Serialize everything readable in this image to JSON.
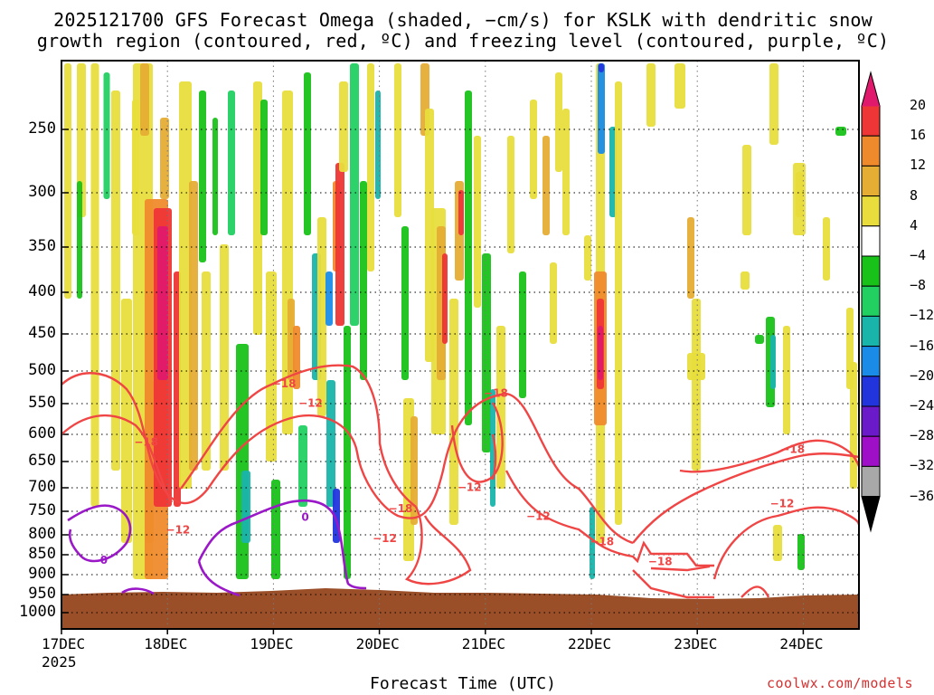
{
  "title_line1": "2025121700 GFS Forecast Omega (shaded, −cm/s) for KSLK with dendritic snow",
  "title_line2": "growth region (contoured, red, ºC) and freezing level (contoured, purple, ºC)",
  "watermark": "coolwx.com/models",
  "colors": {
    "pink": "#e0196d",
    "red": "#ee3636",
    "orange": "#ef8a2c",
    "amber": "#e6ad35",
    "yellow": "#e8dd3c",
    "white": "#ffffff",
    "green": "#19c219",
    "ltgreen": "#22d062",
    "teal": "#19b4aa",
    "blue": "#1a8ce8",
    "navy": "#2235dd",
    "purple": "#6a1ac8",
    "violet": "#a00fc8",
    "gray": "#a8a8a8",
    "black": "#000000",
    "ground": "#9a4f28",
    "contour_red": "#f04545",
    "contour_purple": "#9a18c8"
  },
  "chart_data": {
    "type": "heatmap",
    "title": "2025121700 GFS Forecast Omega (shaded, −cm/s) for KSLK",
    "xlabel": "Forecast Time (UTC)",
    "ylabel": "",
    "x_range_days": [
      0,
      7.5
    ],
    "y_range_hpa": [
      200,
      1050
    ],
    "x_ticks": [
      "17DEC",
      "18DEC",
      "19DEC",
      "20DEC",
      "21DEC",
      "22DEC",
      "23DEC",
      "24DEC"
    ],
    "x_year": "2025",
    "y_ticks": [
      "250",
      "300",
      "350",
      "400",
      "450",
      "500",
      "550",
      "600",
      "650",
      "700",
      "750",
      "800",
      "850",
      "900",
      "950",
      "1000"
    ],
    "y_tick_values": [
      250,
      300,
      350,
      400,
      450,
      500,
      550,
      600,
      650,
      700,
      750,
      800,
      850,
      900,
      950,
      1000
    ],
    "colorbar": {
      "labels": [
        "20",
        "16",
        "12",
        "8",
        "4",
        "−4",
        "−8",
        "−12",
        "−16",
        "−20",
        "−24",
        "−28",
        "−32",
        "−36"
      ],
      "colors": [
        "#e0196d",
        "#ee3636",
        "#ef8a2c",
        "#e6ad35",
        "#e8dd3c",
        "#ffffff",
        "#19c219",
        "#22d062",
        "#19b4aa",
        "#1a8ce8",
        "#2235dd",
        "#6a1ac8",
        "#a00fc8",
        "#a8a8a8",
        "#000000"
      ]
    },
    "contour_labels": [
      {
        "text": "−18",
        "color": "red",
        "day": 0.8,
        "p": 615
      },
      {
        "text": "−18",
        "color": "red",
        "day": 2.1,
        "p": 520
      },
      {
        "text": "−12",
        "color": "red",
        "day": 2.35,
        "p": 550
      },
      {
        "text": "−12",
        "color": "red",
        "day": 1.1,
        "p": 790
      },
      {
        "text": "−18",
        "color": "red",
        "day": 3.2,
        "p": 745
      },
      {
        "text": "−12",
        "color": "red",
        "day": 3.05,
        "p": 810
      },
      {
        "text": "−18",
        "color": "red",
        "day": 4.1,
        "p": 535
      },
      {
        "text": "−12",
        "color": "red",
        "day": 3.85,
        "p": 700
      },
      {
        "text": "−12",
        "color": "red",
        "day": 4.5,
        "p": 762
      },
      {
        "text": "−18",
        "color": "red",
        "day": 5.1,
        "p": 818
      },
      {
        "text": "−18",
        "color": "red",
        "day": 5.65,
        "p": 868
      },
      {
        "text": "−18",
        "color": "red",
        "day": 6.9,
        "p": 628
      },
      {
        "text": "−12",
        "color": "red",
        "day": 6.8,
        "p": 735
      },
      {
        "text": "0",
        "color": "purple",
        "day": 0.4,
        "p": 865
      },
      {
        "text": "0",
        "color": "purple",
        "day": 2.3,
        "p": 763
      }
    ]
  }
}
